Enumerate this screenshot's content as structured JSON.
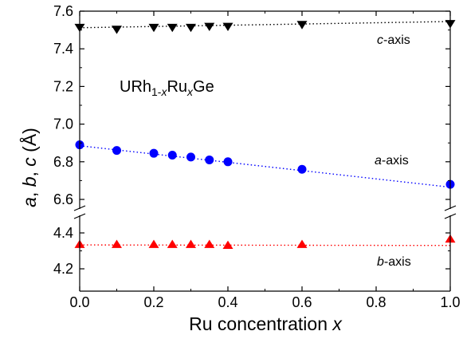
{
  "chart_data": {
    "type": "scatter",
    "title": "",
    "xlabel": {
      "text": "Ru concentration ",
      "var": "x"
    },
    "ylabel": {
      "a": "a",
      "b": "b",
      "c": "c",
      "unit": " (Å)"
    },
    "compound_label": {
      "prefix": "URh",
      "sub1": "1-",
      "subx": "x",
      "mid": "Ru",
      "subx2": "x",
      "suffix": "Ge"
    },
    "xlim": [
      0.0,
      1.0
    ],
    "xticks": [
      0.0,
      0.2,
      0.4,
      0.6,
      0.8,
      1.0
    ],
    "x_tick_labels": [
      "0.0",
      "0.2",
      "0.4",
      "0.6",
      "0.8",
      "1.0"
    ],
    "y_break": true,
    "upper_ylim": [
      6.5,
      7.6
    ],
    "upper_yticks": [
      6.6,
      6.8,
      7.0,
      7.2,
      7.4,
      7.6
    ],
    "upper_tick_labels": [
      "6.6",
      "6.8",
      "7.0",
      "7.2",
      "7.4",
      "7.6"
    ],
    "lower_ylim": [
      4.1,
      4.45
    ],
    "lower_yticks": [
      4.2,
      4.4
    ],
    "lower_tick_labels": [
      "4.2",
      "4.4"
    ],
    "series": [
      {
        "name": "c-axis",
        "label_italic": "c",
        "label_rest": "-axis",
        "panel": "upper",
        "marker": "triangle-down",
        "color": "#000000",
        "x": [
          0.0,
          0.1,
          0.2,
          0.25,
          0.3,
          0.35,
          0.4,
          0.6,
          1.0
        ],
        "y": [
          7.515,
          7.505,
          7.515,
          7.515,
          7.515,
          7.52,
          7.52,
          7.53,
          7.535
        ],
        "fit": [
          7.512,
          7.545
        ]
      },
      {
        "name": "a-axis",
        "label_italic": "a",
        "label_rest": "-axis",
        "panel": "upper",
        "marker": "circle",
        "color": "#0000ff",
        "x": [
          0.0,
          0.1,
          0.2,
          0.25,
          0.3,
          0.35,
          0.4,
          0.6,
          1.0
        ],
        "y": [
          6.89,
          6.86,
          6.845,
          6.835,
          6.825,
          6.81,
          6.8,
          6.76,
          6.68
        ],
        "fit": [
          6.885,
          6.665
        ]
      },
      {
        "name": "b-axis",
        "label_italic": "b",
        "label_rest": "-axis",
        "panel": "lower",
        "marker": "triangle-up",
        "color": "#ff0000",
        "x": [
          0.0,
          0.1,
          0.2,
          0.25,
          0.3,
          0.35,
          0.4,
          0.6,
          1.0
        ],
        "y": [
          4.335,
          4.335,
          4.335,
          4.335,
          4.335,
          4.335,
          4.33,
          4.335,
          4.365
        ],
        "fit": [
          4.333,
          4.33
        ]
      }
    ]
  }
}
